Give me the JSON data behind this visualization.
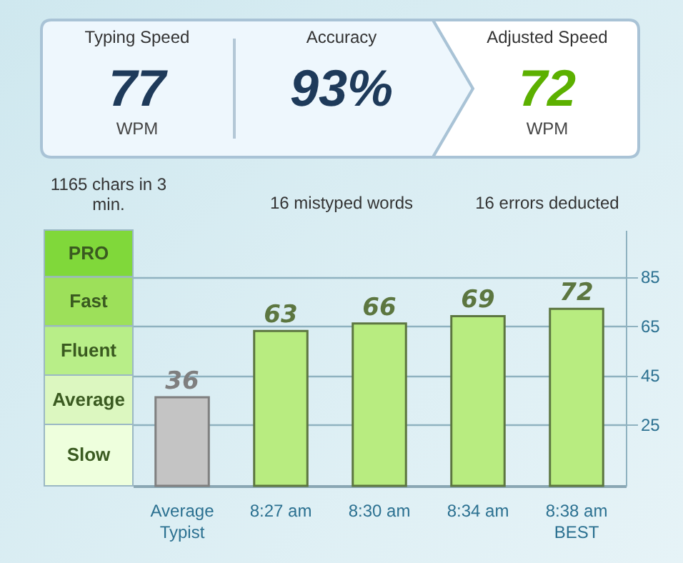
{
  "chart_data": [
    {
      "type": "other",
      "annotations": [
        "Typing Speed",
        "77",
        "WPM",
        "1165 chars in 3 min.",
        "Accuracy",
        "93%",
        "16 mistyped words",
        "Adjusted Speed",
        "72",
        "WPM",
        "16 errors deducted"
      ]
    },
    {
      "type": "bar",
      "categories": [
        "Average\nTypist",
        "8:27 am",
        "8:30 am",
        "8:34 am",
        "8:38 am\nBEST"
      ],
      "values": [
        36,
        63,
        66,
        69,
        72
      ],
      "colors": [
        "#c4c4c4",
        "#b8ec80",
        "#b8ec80",
        "#b8ec80",
        "#b8ec80"
      ],
      "data_labels": true,
      "ylim": [
        0,
        104
      ],
      "yticks": [
        25,
        45,
        65,
        85
      ],
      "grid": "y",
      "bands": [
        {
          "axis": "y",
          "from": 0,
          "to": 25,
          "label": "Slow",
          "color": "#eeffdd"
        },
        {
          "axis": "y",
          "from": 25,
          "to": 45,
          "label": "Average",
          "color": "#dcf7c0"
        },
        {
          "axis": "y",
          "from": 45,
          "to": 65,
          "label": "Fluent",
          "color": "#b8ee88"
        },
        {
          "axis": "y",
          "from": 65,
          "to": 85,
          "label": "Fast",
          "color": "#9de05a"
        },
        {
          "axis": "y",
          "from": 85,
          "to": 104,
          "label": "PRO",
          "color": "#80d83a"
        }
      ]
    }
  ]
}
